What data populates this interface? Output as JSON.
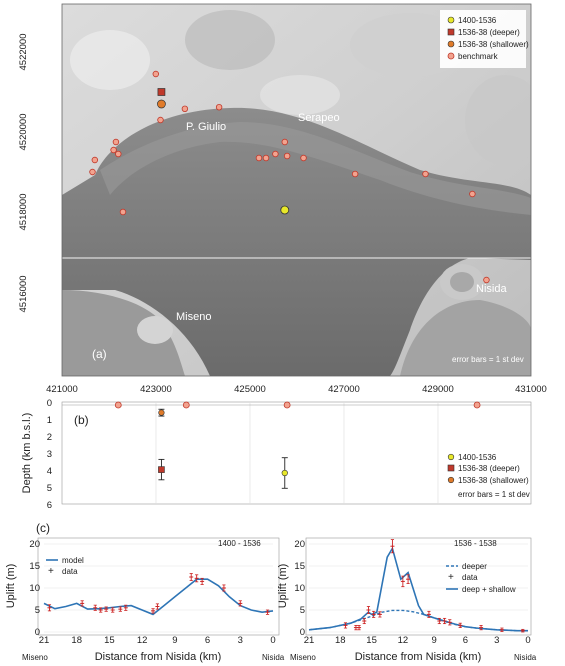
{
  "colors": {
    "c1400": "#e8e82a",
    "deeper": "#c0392b",
    "shallower": "#e07b2a",
    "benchmark_fill": "#f2a38f",
    "benchmark_stroke": "#c0392b",
    "model_line": "#2e75b6",
    "data_marker": "#cc2222"
  },
  "panel_a": {
    "panel_label": "(a)",
    "place_names": [
      "P. Giulio",
      "Serapeo",
      "Nisida",
      "Miseno"
    ],
    "legend": [
      "1400-1536",
      "1536-38 (deeper)",
      "1536-38 (shallower)",
      "benchmark"
    ],
    "note": "error bars = 1 st dev",
    "x_ticks": [
      "421000",
      "423000",
      "425000",
      "427000",
      "429000",
      "431000"
    ],
    "y_ticks": [
      "4522000",
      "4520000",
      "4518000",
      "4516000"
    ],
    "sources": [
      {
        "name": "1400-1536",
        "easting": 425750,
        "northing": 4518050
      },
      {
        "name": "1536-38 (deeper)",
        "easting": 423120,
        "northing": 4521000
      },
      {
        "name": "1536-38 (shallower)",
        "easting": 423120,
        "northing": 4520700
      }
    ],
    "benchmarks": [
      [
        423000,
        4521450
      ],
      [
        423620,
        4520580
      ],
      [
        424350,
        4520620
      ],
      [
        423100,
        4520300
      ],
      [
        422150,
        4519750
      ],
      [
        422200,
        4519450
      ],
      [
        421700,
        4519300
      ],
      [
        421650,
        4519000
      ],
      [
        422300,
        4518000
      ],
      [
        425750,
        4519750
      ],
      [
        425350,
        4519350
      ],
      [
        425550,
        4519450
      ],
      [
        425800,
        4519400
      ],
      [
        425200,
        4519350
      ],
      [
        426150,
        4519350
      ],
      [
        427250,
        4518950
      ],
      [
        428750,
        4518950
      ],
      [
        429750,
        4518450
      ],
      [
        430050,
        4516300
      ],
      [
        422100,
        4519550
      ]
    ]
  },
  "panel_b": {
    "panel_label": "(b)",
    "y_title": "Depth (km b.s.l.)",
    "y_ticks": [
      "0",
      "1",
      "2",
      "3",
      "4",
      "5",
      "6"
    ],
    "legend": [
      "1400-1536",
      "1536-38 (deeper)",
      "1536-38 (shallower)"
    ],
    "note": "error bars = 1 st dev",
    "sources": [
      {
        "name": "1400-1536",
        "easting": 425750,
        "depth": 4.0,
        "err": 0.9
      },
      {
        "name": "1536-38 (deeper)",
        "easting": 423120,
        "depth": 3.8,
        "err": 0.6
      },
      {
        "name": "1536-38 (shallower)",
        "easting": 423120,
        "depth": 0.45,
        "err": 0.2
      }
    ],
    "benchmarks_easting": [
      422200,
      423650,
      425800,
      429850
    ]
  },
  "chart_data": [
    {
      "type": "line",
      "panel_label": "(c)",
      "title": "1400  - 1536",
      "xlabel": "Distance from Nisida (km)",
      "ylabel": "Uplift (m)",
      "x_ticks": [
        "21",
        "18",
        "15",
        "12",
        "9",
        "6",
        "3",
        "0"
      ],
      "x_end_labels": [
        "Miseno",
        "Nisida"
      ],
      "xlim": [
        21,
        0
      ],
      "ylim": [
        0,
        20
      ],
      "y_ticks": [
        "0",
        "5",
        "10",
        "15",
        "20"
      ],
      "legend": [
        "model",
        "data"
      ],
      "model": {
        "x": [
          21,
          20,
          19,
          18,
          17,
          16,
          15,
          14,
          13,
          12,
          11,
          10,
          9,
          8,
          7,
          6,
          5,
          4,
          3,
          2,
          1,
          0
        ],
        "y": [
          6.5,
          5.3,
          5.8,
          6.5,
          5.2,
          5.3,
          5.5,
          5.8,
          6.0,
          5.0,
          4.0,
          6.0,
          8.0,
          10.0,
          12.0,
          12.0,
          10.5,
          8.0,
          6.0,
          5.0,
          4.5,
          4.8
        ]
      },
      "data": {
        "x": [
          20.5,
          17.5,
          16.3,
          15.8,
          15.3,
          14.7,
          14.0,
          13.5,
          11.0,
          10.6,
          7.5,
          7.0,
          6.5,
          4.5,
          3.0,
          0.5
        ],
        "y": [
          5.5,
          6.5,
          5.5,
          5.0,
          5.2,
          5.0,
          5.2,
          5.5,
          4.8,
          5.8,
          12.5,
          12.2,
          11.5,
          10.0,
          6.5,
          4.5
        ],
        "err": [
          0.7,
          0.6,
          0.6,
          0.5,
          0.5,
          0.5,
          0.5,
          0.6,
          0.5,
          0.6,
          0.8,
          0.8,
          0.7,
          0.7,
          0.6,
          0.5
        ]
      }
    },
    {
      "type": "line",
      "title": "1536  - 1538",
      "xlabel": "Distance from Nisida (km)",
      "ylabel": "Uplift (m)",
      "x_ticks": [
        "21",
        "18",
        "15",
        "12",
        "9",
        "6",
        "3",
        "0"
      ],
      "x_end_labels": [
        "Miseno",
        "Nisida"
      ],
      "xlim": [
        21,
        0
      ],
      "ylim": [
        0,
        20
      ],
      "y_ticks": [
        "0",
        "5",
        "10",
        "15",
        "20"
      ],
      "legend": [
        "deeper",
        "data",
        "deep + shallow"
      ],
      "deeper": {
        "x": [
          21,
          19,
          17,
          16,
          15,
          14,
          13,
          12,
          11,
          10,
          9,
          8,
          7,
          6,
          5,
          4,
          3,
          2,
          1,
          0
        ],
        "y": [
          0.5,
          1.0,
          2.0,
          2.8,
          3.6,
          4.5,
          4.9,
          4.9,
          4.6,
          4.0,
          3.2,
          2.4,
          1.7,
          1.2,
          0.9,
          0.7,
          0.5,
          0.4,
          0.3,
          0.3
        ]
      },
      "deep_shallow": {
        "x": [
          21,
          19,
          17,
          16,
          15.3,
          15,
          14.5,
          13.5,
          13,
          12.2,
          11.5,
          10.5,
          10,
          9,
          8,
          7,
          6,
          5,
          4,
          3,
          2,
          1,
          0
        ],
        "y": [
          0.5,
          1.0,
          2.0,
          3.0,
          4.5,
          4.0,
          4.5,
          17.0,
          19.0,
          12.0,
          13.5,
          6.0,
          4.0,
          3.2,
          2.5,
          1.8,
          1.2,
          0.9,
          0.7,
          0.5,
          0.4,
          0.3,
          0.3
        ]
      },
      "data": {
        "x": [
          17.5,
          16.5,
          16.2,
          15.7,
          15.3,
          14.8,
          14.2,
          13.0,
          12.0,
          11.5,
          9.5,
          8.5,
          8.0,
          7.5,
          6.5,
          4.5,
          2.5,
          0.5
        ],
        "y": [
          1.5,
          1.0,
          1.0,
          2.5,
          5.0,
          4.0,
          4.0,
          19.5,
          11.5,
          12.0,
          4.0,
          2.5,
          2.5,
          2.2,
          1.5,
          1.0,
          0.5,
          0.3
        ],
        "err": [
          0.6,
          0.5,
          0.5,
          0.6,
          0.8,
          0.7,
          0.6,
          1.5,
          1.2,
          1.0,
          0.7,
          0.6,
          0.6,
          0.6,
          0.5,
          0.5,
          0.4,
          0.3
        ]
      }
    }
  ]
}
